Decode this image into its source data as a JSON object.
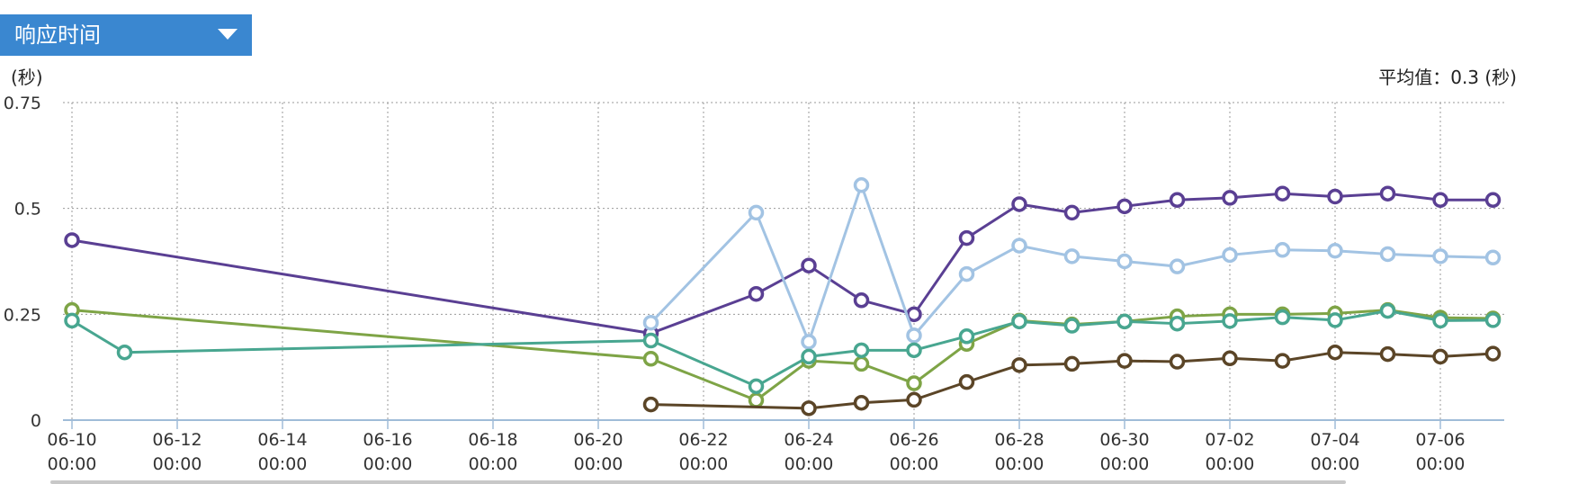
{
  "metric_select": {
    "label": "响应时间"
  },
  "unit_label": "(秒)",
  "average_label": "平均值：0.3 (秒)",
  "chart_data": {
    "type": "line",
    "title": "",
    "ylabel": "(秒)",
    "ylim": [
      0,
      0.75
    ],
    "yticks": [
      "0.75",
      "0.5",
      "0.25",
      "0"
    ],
    "ytick_values": [
      0.75,
      0.5,
      0.25,
      0
    ],
    "grid": true,
    "x_dates": [
      "06-10",
      "06-11",
      "06-12",
      "06-13",
      "06-14",
      "06-15",
      "06-16",
      "06-17",
      "06-18",
      "06-19",
      "06-20",
      "06-21",
      "06-22",
      "06-23",
      "06-24",
      "06-25",
      "06-26",
      "06-27",
      "06-28",
      "06-29",
      "06-30",
      "07-01",
      "07-02",
      "07-03",
      "07-04",
      "07-05",
      "07-06",
      "07-07"
    ],
    "xtick_labels": [
      {
        "date": "06-10",
        "line1": "06-10",
        "line2": "00:00"
      },
      {
        "date": "06-12",
        "line1": "06-12",
        "line2": "00:00"
      },
      {
        "date": "06-14",
        "line1": "06-14",
        "line2": "00:00"
      },
      {
        "date": "06-16",
        "line1": "06-16",
        "line2": "00:00"
      },
      {
        "date": "06-18",
        "line1": "06-18",
        "line2": "00:00"
      },
      {
        "date": "06-20",
        "line1": "06-20",
        "line2": "00:00"
      },
      {
        "date": "06-22",
        "line1": "06-22",
        "line2": "00:00"
      },
      {
        "date": "06-24",
        "line1": "06-24",
        "line2": "00:00"
      },
      {
        "date": "06-26",
        "line1": "06-26",
        "line2": "00:00"
      },
      {
        "date": "06-28",
        "line1": "06-28",
        "line2": "00:00"
      },
      {
        "date": "06-30",
        "line1": "06-30",
        "line2": "00:00"
      },
      {
        "date": "07-02",
        "line1": "07-02",
        "line2": "00:00"
      },
      {
        "date": "07-04",
        "line1": "07-04",
        "line2": "00:00"
      },
      {
        "date": "07-06",
        "line1": "07-06",
        "line2": "00:00"
      }
    ],
    "series": [
      {
        "color": "#5a3f93",
        "points": [
          [
            "06-10",
            0.425
          ],
          [
            "06-21",
            0.205
          ],
          [
            "06-23",
            0.298
          ],
          [
            "06-24",
            0.365
          ],
          [
            "06-25",
            0.283
          ],
          [
            "06-26",
            0.25
          ],
          [
            "06-27",
            0.43
          ],
          [
            "06-28",
            0.51
          ],
          [
            "06-29",
            0.49
          ],
          [
            "06-30",
            0.505
          ],
          [
            "07-01",
            0.52
          ],
          [
            "07-02",
            0.525
          ],
          [
            "07-03",
            0.535
          ],
          [
            "07-04",
            0.528
          ],
          [
            "07-05",
            0.535
          ],
          [
            "07-06",
            0.52
          ],
          [
            "07-07",
            0.52
          ]
        ]
      },
      {
        "color": "#a2c3e3",
        "points": [
          [
            "06-21",
            0.23
          ],
          [
            "06-23",
            0.49
          ],
          [
            "06-24",
            0.185
          ],
          [
            "06-25",
            0.555
          ],
          [
            "06-26",
            0.2
          ],
          [
            "06-27",
            0.345
          ],
          [
            "06-28",
            0.412
          ],
          [
            "06-29",
            0.387
          ],
          [
            "06-30",
            0.375
          ],
          [
            "07-01",
            0.363
          ],
          [
            "07-02",
            0.39
          ],
          [
            "07-03",
            0.402
          ],
          [
            "07-04",
            0.4
          ],
          [
            "07-05",
            0.392
          ],
          [
            "07-06",
            0.387
          ],
          [
            "07-07",
            0.384
          ]
        ]
      },
      {
        "color": "#7ea446",
        "points": [
          [
            "06-10",
            0.26
          ],
          [
            "06-21",
            0.145
          ],
          [
            "06-23",
            0.047
          ],
          [
            "06-24",
            0.14
          ],
          [
            "06-25",
            0.133
          ],
          [
            "06-26",
            0.087
          ],
          [
            "06-27",
            0.18
          ],
          [
            "06-28",
            0.235
          ],
          [
            "06-29",
            0.226
          ],
          [
            "06-30",
            0.233
          ],
          [
            "07-01",
            0.245
          ],
          [
            "07-02",
            0.25
          ],
          [
            "07-03",
            0.25
          ],
          [
            "07-04",
            0.252
          ],
          [
            "07-05",
            0.26
          ],
          [
            "07-06",
            0.242
          ],
          [
            "07-07",
            0.24
          ]
        ]
      },
      {
        "color": "#48a690",
        "points": [
          [
            "06-10",
            0.235
          ],
          [
            "06-11",
            0.16
          ],
          [
            "06-21",
            0.188
          ],
          [
            "06-23",
            0.08
          ],
          [
            "06-24",
            0.15
          ],
          [
            "06-25",
            0.165
          ],
          [
            "06-26",
            0.165
          ],
          [
            "06-27",
            0.198
          ],
          [
            "06-28",
            0.233
          ],
          [
            "06-29",
            0.223
          ],
          [
            "06-30",
            0.233
          ],
          [
            "07-01",
            0.228
          ],
          [
            "07-02",
            0.234
          ],
          [
            "07-03",
            0.243
          ],
          [
            "07-04",
            0.236
          ],
          [
            "07-05",
            0.258
          ],
          [
            "07-06",
            0.235
          ],
          [
            "07-07",
            0.236
          ]
        ]
      },
      {
        "color": "#5b4527",
        "points": [
          [
            "06-21",
            0.037
          ],
          [
            "06-24",
            0.028
          ],
          [
            "06-25",
            0.041
          ],
          [
            "06-26",
            0.048
          ],
          [
            "06-27",
            0.09
          ],
          [
            "06-28",
            0.13
          ],
          [
            "06-29",
            0.133
          ],
          [
            "06-30",
            0.14
          ],
          [
            "07-01",
            0.138
          ],
          [
            "07-02",
            0.146
          ],
          [
            "07-03",
            0.14
          ],
          [
            "07-04",
            0.16
          ],
          [
            "07-05",
            0.156
          ],
          [
            "07-06",
            0.15
          ],
          [
            "07-07",
            0.157
          ]
        ]
      }
    ]
  }
}
